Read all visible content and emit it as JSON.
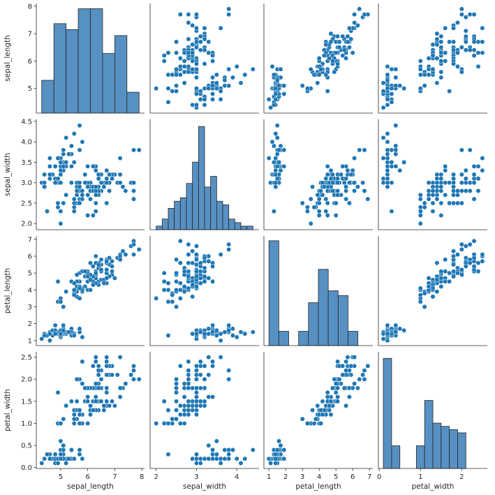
{
  "chart_data": {
    "type": "scatter",
    "variables": [
      "sepal_length",
      "sepal_width",
      "petal_length",
      "petal_width"
    ],
    "point_color": "#1f77b4",
    "bar_color": "#5790c2",
    "axes": {
      "sepal_length": {
        "ticks": [
          5,
          6,
          7,
          8
        ],
        "range": [
          4.1,
          8.1
        ]
      },
      "sepal_width": {
        "ticks": [
          2,
          3,
          4
        ],
        "range": [
          1.85,
          4.55
        ]
      },
      "petal_length": {
        "ticks": [
          1,
          2,
          3,
          4,
          5,
          6,
          7
        ],
        "range": [
          0.7,
          7.2
        ]
      },
      "petal_width": {
        "ticks": [
          0,
          1,
          2
        ],
        "range": [
          -0.02,
          2.62
        ]
      }
    },
    "y_tick_labels": {
      "sepal_length": [
        "5",
        "6",
        "7",
        "8"
      ],
      "sepal_width": [
        "2.0",
        "2.5",
        "3.0",
        "3.5",
        "4.0",
        "4.5"
      ],
      "petal_length": [
        "1",
        "2",
        "3",
        "4",
        "5",
        "6",
        "7"
      ],
      "petal_width": [
        "0.0",
        "0.5",
        "1.0",
        "1.5",
        "2.0",
        "2.5"
      ]
    },
    "y_tick_values": {
      "sepal_length": [
        5,
        6,
        7,
        8
      ],
      "sepal_width": [
        2.0,
        2.5,
        3.0,
        3.5,
        4.0,
        4.5
      ],
      "petal_length": [
        1,
        2,
        3,
        4,
        5,
        6,
        7
      ],
      "petal_width": [
        0.0,
        0.5,
        1.0,
        1.5,
        2.0,
        2.5
      ]
    },
    "histograms": {
      "sepal_length": {
        "edges": [
          4.3,
          4.75,
          5.2,
          5.65,
          6.1,
          6.55,
          7.0,
          7.45,
          7.9
        ],
        "counts": [
          11,
          30,
          28,
          35,
          35,
          20,
          26,
          7
        ]
      },
      "sepal_width": {
        "edges": [
          2.0,
          2.15,
          2.3,
          2.45,
          2.6,
          2.75,
          2.9,
          3.05,
          3.2,
          3.35,
          3.5,
          3.65,
          3.8,
          3.95,
          4.1,
          4.25,
          4.4
        ],
        "counts": [
          1,
          3,
          6,
          8,
          9,
          13,
          19,
          29,
          12,
          15,
          8,
          7,
          3,
          2,
          1,
          1
        ],
        "ymax": 31
      },
      "petal_length": {
        "edges": [
          1.0,
          1.59,
          2.18,
          2.77,
          3.36,
          3.95,
          4.54,
          5.13,
          5.72,
          6.31,
          6.9
        ],
        "counts": [
          44,
          6,
          0,
          6,
          18,
          32,
          23,
          21,
          6,
          0
        ],
        "ymax": 46
      },
      "petal_width": {
        "edges": [
          0.1,
          0.3,
          0.5,
          0.7,
          0.9,
          1.1,
          1.3,
          1.5,
          1.7,
          1.9,
          2.1,
          2.3,
          2.5
        ],
        "counts": [
          34,
          7,
          0,
          0,
          7,
          21,
          14,
          13,
          12,
          11,
          0,
          0
        ],
        "ymax": 36
      }
    },
    "samples": [
      [
        5.1,
        3.5,
        1.4,
        0.2
      ],
      [
        4.9,
        3.0,
        1.4,
        0.2
      ],
      [
        4.7,
        3.2,
        1.3,
        0.2
      ],
      [
        4.6,
        3.1,
        1.5,
        0.2
      ],
      [
        5.0,
        3.6,
        1.4,
        0.2
      ],
      [
        5.4,
        3.9,
        1.7,
        0.4
      ],
      [
        4.6,
        3.4,
        1.4,
        0.3
      ],
      [
        5.0,
        3.4,
        1.5,
        0.2
      ],
      [
        4.4,
        2.9,
        1.4,
        0.2
      ],
      [
        4.9,
        3.1,
        1.5,
        0.1
      ],
      [
        5.4,
        3.7,
        1.5,
        0.2
      ],
      [
        4.8,
        3.4,
        1.6,
        0.2
      ],
      [
        4.8,
        3.0,
        1.4,
        0.1
      ],
      [
        4.3,
        3.0,
        1.1,
        0.1
      ],
      [
        5.8,
        4.0,
        1.2,
        0.2
      ],
      [
        5.7,
        4.4,
        1.5,
        0.4
      ],
      [
        5.4,
        3.9,
        1.3,
        0.4
      ],
      [
        5.1,
        3.5,
        1.4,
        0.3
      ],
      [
        5.7,
        3.8,
        1.7,
        0.3
      ],
      [
        5.1,
        3.8,
        1.5,
        0.3
      ],
      [
        5.4,
        3.4,
        1.7,
        0.2
      ],
      [
        5.1,
        3.7,
        1.5,
        0.4
      ],
      [
        4.6,
        3.6,
        1.0,
        0.2
      ],
      [
        5.1,
        3.3,
        1.7,
        0.5
      ],
      [
        4.8,
        3.4,
        1.9,
        0.2
      ],
      [
        5.0,
        3.0,
        1.6,
        0.2
      ],
      [
        5.0,
        3.4,
        1.6,
        0.4
      ],
      [
        5.2,
        3.5,
        1.5,
        0.2
      ],
      [
        5.2,
        3.4,
        1.4,
        0.2
      ],
      [
        4.7,
        3.2,
        1.6,
        0.2
      ],
      [
        4.8,
        3.1,
        1.6,
        0.2
      ],
      [
        5.4,
        3.4,
        1.5,
        0.4
      ],
      [
        5.2,
        4.1,
        1.5,
        0.1
      ],
      [
        5.5,
        4.2,
        1.4,
        0.2
      ],
      [
        4.9,
        3.1,
        1.5,
        0.2
      ],
      [
        5.0,
        3.2,
        1.2,
        0.2
      ],
      [
        5.5,
        3.5,
        1.3,
        0.2
      ],
      [
        4.9,
        3.6,
        1.4,
        0.1
      ],
      [
        4.4,
        3.0,
        1.3,
        0.2
      ],
      [
        5.1,
        3.4,
        1.5,
        0.2
      ],
      [
        5.0,
        3.5,
        1.3,
        0.3
      ],
      [
        4.5,
        2.3,
        1.3,
        0.3
      ],
      [
        4.4,
        3.2,
        1.3,
        0.2
      ],
      [
        5.0,
        3.5,
        1.6,
        0.6
      ],
      [
        5.1,
        3.8,
        1.9,
        0.4
      ],
      [
        4.8,
        3.0,
        1.4,
        0.3
      ],
      [
        5.1,
        3.8,
        1.6,
        0.2
      ],
      [
        4.6,
        3.2,
        1.4,
        0.2
      ],
      [
        5.3,
        3.7,
        1.5,
        0.2
      ],
      [
        5.0,
        3.3,
        1.4,
        0.2
      ],
      [
        7.0,
        3.2,
        4.7,
        1.4
      ],
      [
        6.4,
        3.2,
        4.5,
        1.5
      ],
      [
        6.9,
        3.1,
        4.9,
        1.5
      ],
      [
        5.5,
        2.3,
        4.0,
        1.3
      ],
      [
        6.5,
        2.8,
        4.6,
        1.5
      ],
      [
        5.7,
        2.8,
        4.5,
        1.3
      ],
      [
        6.3,
        3.3,
        4.7,
        1.6
      ],
      [
        4.9,
        2.4,
        3.3,
        1.0
      ],
      [
        6.6,
        2.9,
        4.6,
        1.3
      ],
      [
        5.2,
        2.7,
        3.9,
        1.4
      ],
      [
        5.0,
        2.0,
        3.5,
        1.0
      ],
      [
        5.9,
        3.0,
        4.2,
        1.5
      ],
      [
        6.0,
        2.2,
        4.0,
        1.0
      ],
      [
        6.1,
        2.9,
        4.7,
        1.4
      ],
      [
        5.6,
        2.9,
        3.6,
        1.3
      ],
      [
        6.7,
        3.1,
        4.4,
        1.4
      ],
      [
        5.6,
        3.0,
        4.5,
        1.5
      ],
      [
        5.8,
        2.7,
        4.1,
        1.0
      ],
      [
        6.2,
        2.2,
        4.5,
        1.5
      ],
      [
        5.6,
        2.5,
        3.9,
        1.1
      ],
      [
        5.9,
        3.2,
        4.8,
        1.8
      ],
      [
        6.1,
        2.8,
        4.0,
        1.3
      ],
      [
        6.3,
        2.5,
        4.9,
        1.5
      ],
      [
        6.1,
        2.8,
        4.7,
        1.2
      ],
      [
        6.4,
        2.9,
        4.3,
        1.3
      ],
      [
        6.6,
        3.0,
        4.4,
        1.4
      ],
      [
        6.8,
        2.8,
        4.8,
        1.4
      ],
      [
        6.7,
        3.0,
        5.0,
        1.7
      ],
      [
        6.0,
        2.9,
        4.5,
        1.5
      ],
      [
        5.7,
        2.6,
        3.5,
        1.0
      ],
      [
        5.5,
        2.4,
        3.8,
        1.1
      ],
      [
        5.5,
        2.4,
        3.7,
        1.0
      ],
      [
        5.8,
        2.7,
        3.9,
        1.2
      ],
      [
        6.0,
        2.7,
        5.1,
        1.6
      ],
      [
        5.4,
        3.0,
        4.5,
        1.5
      ],
      [
        6.0,
        3.4,
        4.5,
        1.6
      ],
      [
        6.7,
        3.1,
        4.7,
        1.5
      ],
      [
        6.3,
        2.3,
        4.4,
        1.3
      ],
      [
        5.6,
        3.0,
        4.1,
        1.3
      ],
      [
        5.5,
        2.5,
        4.0,
        1.3
      ],
      [
        5.5,
        2.6,
        4.4,
        1.2
      ],
      [
        6.1,
        3.0,
        4.6,
        1.4
      ],
      [
        5.8,
        2.6,
        4.0,
        1.2
      ],
      [
        5.0,
        2.3,
        3.3,
        1.0
      ],
      [
        5.6,
        2.7,
        4.2,
        1.3
      ],
      [
        5.7,
        3.0,
        4.2,
        1.2
      ],
      [
        5.7,
        2.9,
        4.2,
        1.3
      ],
      [
        6.2,
        2.9,
        4.3,
        1.3
      ],
      [
        5.1,
        2.5,
        3.0,
        1.1
      ],
      [
        5.7,
        2.8,
        4.1,
        1.3
      ],
      [
        6.3,
        3.3,
        6.0,
        2.5
      ],
      [
        5.8,
        2.7,
        5.1,
        1.9
      ],
      [
        7.1,
        3.0,
        5.9,
        2.1
      ],
      [
        6.3,
        2.9,
        5.6,
        1.8
      ],
      [
        6.5,
        3.0,
        5.8,
        2.2
      ],
      [
        7.6,
        3.0,
        6.6,
        2.1
      ],
      [
        4.9,
        2.5,
        4.5,
        1.7
      ],
      [
        7.3,
        2.9,
        6.3,
        1.8
      ],
      [
        6.7,
        2.5,
        5.8,
        1.8
      ],
      [
        7.2,
        3.6,
        6.1,
        2.5
      ],
      [
        6.5,
        3.2,
        5.1,
        2.0
      ],
      [
        6.4,
        2.7,
        5.3,
        1.9
      ],
      [
        6.8,
        3.0,
        5.5,
        2.1
      ],
      [
        5.7,
        2.5,
        5.0,
        2.0
      ],
      [
        5.8,
        2.8,
        5.1,
        2.4
      ],
      [
        6.4,
        3.2,
        5.3,
        2.3
      ],
      [
        6.5,
        3.0,
        5.5,
        1.8
      ],
      [
        7.7,
        3.8,
        6.7,
        2.2
      ],
      [
        7.7,
        2.6,
        6.9,
        2.3
      ],
      [
        6.0,
        2.2,
        5.0,
        1.5
      ],
      [
        6.9,
        3.2,
        5.7,
        2.3
      ],
      [
        5.6,
        2.8,
        4.9,
        2.0
      ],
      [
        7.7,
        2.8,
        6.7,
        2.0
      ],
      [
        6.3,
        2.7,
        4.9,
        1.8
      ],
      [
        6.7,
        3.3,
        5.7,
        2.1
      ],
      [
        7.2,
        3.2,
        6.0,
        1.8
      ],
      [
        6.2,
        2.8,
        4.8,
        1.8
      ],
      [
        6.1,
        3.0,
        4.9,
        1.8
      ],
      [
        6.4,
        2.8,
        5.6,
        2.1
      ],
      [
        7.2,
        3.0,
        5.8,
        1.6
      ],
      [
        7.4,
        2.8,
        6.1,
        1.9
      ],
      [
        7.9,
        3.8,
        6.4,
        2.0
      ],
      [
        6.4,
        2.8,
        5.6,
        2.2
      ],
      [
        6.3,
        2.8,
        5.1,
        1.5
      ],
      [
        6.1,
        2.6,
        5.6,
        1.4
      ],
      [
        7.7,
        3.0,
        6.1,
        2.3
      ],
      [
        6.3,
        3.4,
        5.6,
        2.4
      ],
      [
        6.4,
        3.1,
        5.5,
        1.8
      ],
      [
        6.0,
        3.0,
        4.8,
        1.8
      ],
      [
        6.9,
        3.1,
        5.4,
        2.1
      ],
      [
        6.7,
        3.1,
        5.6,
        2.4
      ],
      [
        6.9,
        3.1,
        5.1,
        2.3
      ],
      [
        5.8,
        2.7,
        5.1,
        1.9
      ],
      [
        6.8,
        3.2,
        5.9,
        2.3
      ],
      [
        6.7,
        3.3,
        5.7,
        2.5
      ],
      [
        6.7,
        3.0,
        5.2,
        2.3
      ],
      [
        6.3,
        2.5,
        5.0,
        1.9
      ],
      [
        6.5,
        3.0,
        5.2,
        2.0
      ],
      [
        6.2,
        3.4,
        5.4,
        2.3
      ],
      [
        5.9,
        3.0,
        5.1,
        1.8
      ]
    ]
  }
}
